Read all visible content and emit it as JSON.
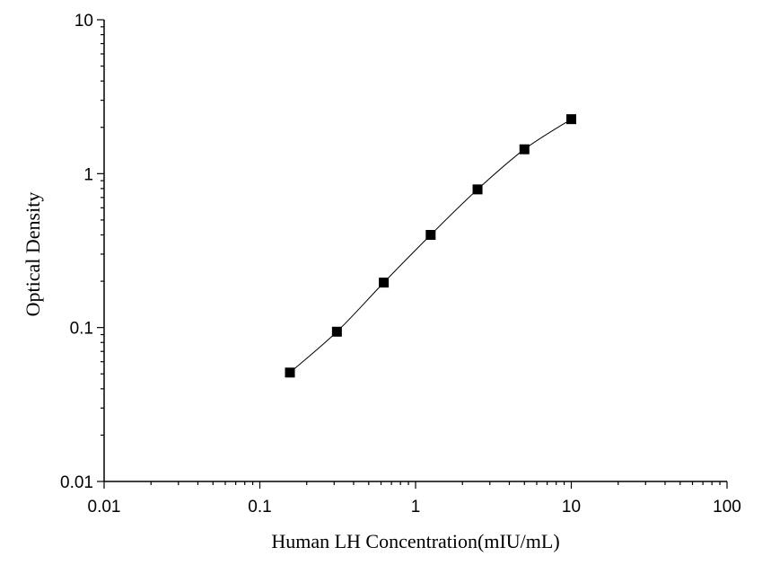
{
  "chart_data": {
    "type": "scatter",
    "title": "",
    "xlabel": "Human LH Concentration(mIU/mL)",
    "ylabel": "Optical Density",
    "x_scale": "log",
    "y_scale": "log",
    "xlim": [
      0.01,
      100
    ],
    "ylim": [
      0.01,
      10
    ],
    "x_ticks": [
      "0.01",
      "0.1",
      "1",
      "10",
      "100"
    ],
    "y_ticks": [
      "0.01",
      "0.1",
      "1",
      "10"
    ],
    "grid": false,
    "legend": "none",
    "series": [
      {
        "x": [
          0.156,
          0.3125,
          0.625,
          1.25,
          2.5,
          5,
          10
        ],
        "y": [
          0.051,
          0.094,
          0.196,
          0.4,
          0.79,
          1.44,
          2.26
        ],
        "marker": "square",
        "color": "#000000",
        "fit_curve": true
      }
    ]
  }
}
